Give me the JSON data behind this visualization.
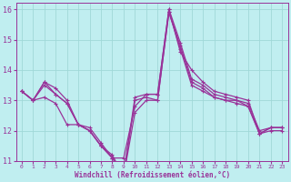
{
  "background_color": "#c0eef0",
  "grid_color": "#a0d8d8",
  "line_color": "#993399",
  "xlim": [
    -0.5,
    23.5
  ],
  "ylim": [
    11,
    16.2
  ],
  "yticks": [
    11,
    12,
    13,
    14,
    15,
    16
  ],
  "xticks": [
    0,
    1,
    2,
    3,
    4,
    5,
    6,
    7,
    8,
    9,
    10,
    11,
    12,
    13,
    14,
    15,
    16,
    17,
    18,
    19,
    20,
    21,
    22,
    23
  ],
  "xlabel": "Windchill (Refroidissement éolien,°C)",
  "series": [
    [
      13.3,
      13.0,
      13.6,
      13.4,
      13.0,
      12.2,
      12.1,
      11.6,
      11.1,
      11.1,
      12.8,
      13.2,
      13.2,
      16.0,
      14.6,
      14.0,
      13.6,
      13.3,
      13.2,
      13.1,
      13.0,
      11.9,
      12.1,
      12.1
    ],
    [
      13.3,
      13.0,
      13.6,
      13.2,
      12.9,
      12.2,
      12.0,
      11.5,
      11.1,
      10.6,
      13.1,
      13.2,
      13.2,
      16.0,
      14.9,
      13.7,
      13.5,
      13.2,
      13.1,
      13.0,
      12.9,
      12.0,
      12.1,
      12.1
    ],
    [
      13.3,
      13.0,
      13.5,
      13.2,
      12.9,
      12.2,
      12.0,
      11.5,
      11.2,
      10.5,
      13.0,
      13.1,
      13.0,
      15.9,
      14.8,
      13.6,
      13.4,
      13.1,
      13.0,
      13.0,
      12.8,
      11.9,
      12.1,
      12.1
    ],
    [
      13.3,
      13.0,
      13.1,
      12.9,
      12.2,
      12.2,
      12.0,
      11.5,
      11.1,
      10.5,
      12.6,
      13.0,
      13.0,
      15.9,
      14.7,
      13.5,
      13.3,
      13.1,
      13.0,
      12.9,
      12.8,
      11.9,
      12.0,
      12.0
    ]
  ],
  "figwidth": 3.2,
  "figheight": 2.0,
  "dpi": 100
}
